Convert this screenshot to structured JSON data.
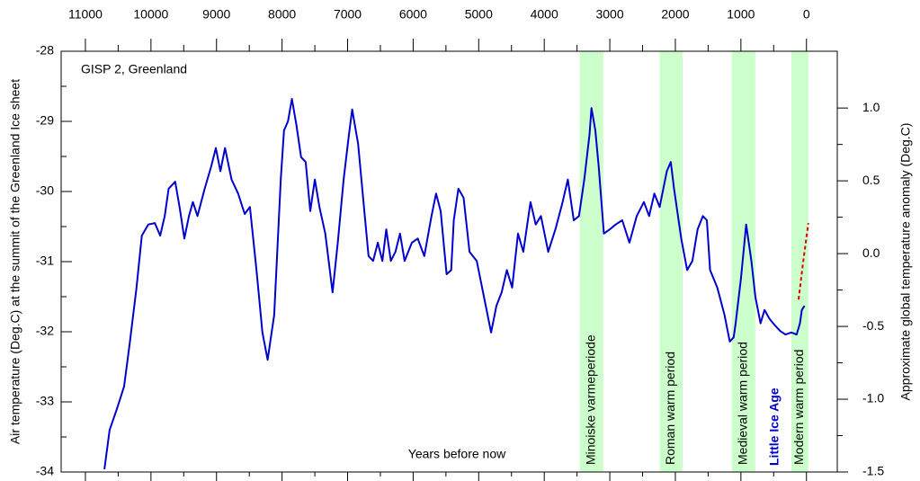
{
  "chart_data": {
    "type": "line",
    "annotation_location": "GISP 2, Greenland",
    "xlabel": "Years before now",
    "ylabel": "Air temperature (Deg.C) at the summit of the Greenland Ice sheet",
    "y2label": "Approximate global temperature anomaly (Deg.C)",
    "annotation_cold": "Little Ice Age",
    "xlim": [
      11370,
      -470
    ],
    "xticks": [
      11000,
      10000,
      9000,
      8000,
      7000,
      6000,
      5000,
      4000,
      3000,
      2000,
      1000,
      0
    ],
    "ylim": [
      -34,
      -28
    ],
    "yticks": [
      -28,
      -29,
      -30,
      -31,
      -32,
      -33,
      -34
    ],
    "y2lim": [
      -1.5,
      1.39
    ],
    "y2ticks": [
      {
        "value": 1.0,
        "label": "1.0"
      },
      {
        "value": 0.5,
        "label": "0.5"
      },
      {
        "value": 0.0,
        "label": "0.0"
      },
      {
        "value": -0.5,
        "label": "-0.5"
      },
      {
        "value": -1.0,
        "label": "-1.0"
      },
      {
        "value": -1.5,
        "label": "-1.5"
      }
    ],
    "bands": [
      {
        "label": "Minoiske varmeperiode",
        "x": [
          3460,
          3100
        ],
        "color": "#ccffcc"
      },
      {
        "label": "Roman warm period",
        "x": [
          2240,
          1890
        ],
        "color": "#ccffcc"
      },
      {
        "label": "Medieval warm period",
        "x": [
          1140,
          780
        ],
        "color": "#ccffcc"
      },
      {
        "label": "Modern warm period",
        "x": [
          230,
          -30
        ],
        "color": "#ccffcc"
      }
    ],
    "series": [
      {
        "color": "#0000cc",
        "dashed": false,
        "x": [
          10710,
          10630,
          10520,
          10410,
          10320,
          10220,
          10140,
          10040,
          9940,
          9860,
          9790,
          9730,
          9630,
          9560,
          9490,
          9420,
          9360,
          9290,
          9180,
          9080,
          9010,
          8940,
          8870,
          8770,
          8670,
          8570,
          8490,
          8390,
          8300,
          8220,
          8120,
          8020,
          7970,
          7910,
          7850,
          7780,
          7710,
          7640,
          7570,
          7500,
          7430,
          7340,
          7230,
          7150,
          7060,
          6980,
          6930,
          6840,
          6750,
          6680,
          6610,
          6540,
          6470,
          6410,
          6340,
          6270,
          6200,
          6130,
          6020,
          5930,
          5830,
          5720,
          5650,
          5580,
          5490,
          5420,
          5380,
          5310,
          5230,
          5140,
          5030,
          4920,
          4810,
          4730,
          4650,
          4570,
          4490,
          4400,
          4320,
          4210,
          4130,
          4050,
          3940,
          3830,
          3720,
          3640,
          3550,
          3470,
          3390,
          3310,
          3280,
          3220,
          3170,
          3090,
          3000,
          2910,
          2810,
          2700,
          2590,
          2480,
          2400,
          2320,
          2240,
          2130,
          2070,
          2020,
          1910,
          1820,
          1740,
          1660,
          1580,
          1520,
          1470,
          1360,
          1250,
          1170,
          1110,
          1080,
          1000,
          920,
          840,
          780,
          700,
          640,
          560,
          480,
          400,
          320,
          230,
          150,
          100,
          70,
          30
        ],
        "values": [
          -33.96,
          -33.4,
          -33.1,
          -32.78,
          -32.14,
          -31.37,
          -30.63,
          -30.47,
          -30.45,
          -30.63,
          -30.35,
          -29.96,
          -29.86,
          -30.24,
          -30.67,
          -30.35,
          -30.15,
          -30.35,
          -29.96,
          -29.64,
          -29.38,
          -29.71,
          -29.38,
          -29.83,
          -30.03,
          -30.32,
          -30.22,
          -31.12,
          -32.01,
          -32.4,
          -31.76,
          -29.83,
          -29.13,
          -29.0,
          -28.68,
          -29.06,
          -29.51,
          -29.58,
          -30.28,
          -29.83,
          -30.22,
          -30.6,
          -31.44,
          -30.73,
          -29.83,
          -29.19,
          -28.83,
          -29.32,
          -30.22,
          -30.92,
          -30.99,
          -30.73,
          -30.99,
          -30.54,
          -30.99,
          -30.86,
          -30.6,
          -30.99,
          -30.73,
          -30.67,
          -30.92,
          -30.35,
          -30.03,
          -30.28,
          -31.18,
          -31.12,
          -30.41,
          -29.96,
          -30.09,
          -30.86,
          -30.99,
          -31.5,
          -32.01,
          -31.63,
          -31.44,
          -31.12,
          -31.37,
          -30.6,
          -30.86,
          -30.15,
          -30.47,
          -30.35,
          -30.86,
          -30.54,
          -30.15,
          -29.83,
          -30.41,
          -30.35,
          -29.83,
          -29.19,
          -28.81,
          -29.13,
          -29.64,
          -30.6,
          -30.54,
          -30.47,
          -30.41,
          -30.73,
          -30.35,
          -30.15,
          -30.35,
          -30.03,
          -30.22,
          -29.71,
          -29.58,
          -29.96,
          -30.67,
          -31.12,
          -30.99,
          -30.54,
          -30.35,
          -30.41,
          -31.12,
          -31.37,
          -31.76,
          -32.14,
          -32.08,
          -31.88,
          -31.24,
          -30.47,
          -30.99,
          -31.5,
          -31.88,
          -31.69,
          -31.82,
          -31.91,
          -31.99,
          -32.04,
          -32.01,
          -32.04,
          -31.88,
          -31.69,
          -31.63
        ]
      },
      {
        "color": "#dd0000",
        "dashed": true,
        "x": [
          120,
          50,
          -30
        ],
        "values": [
          -31.54,
          -31.0,
          -30.45
        ]
      }
    ]
  }
}
